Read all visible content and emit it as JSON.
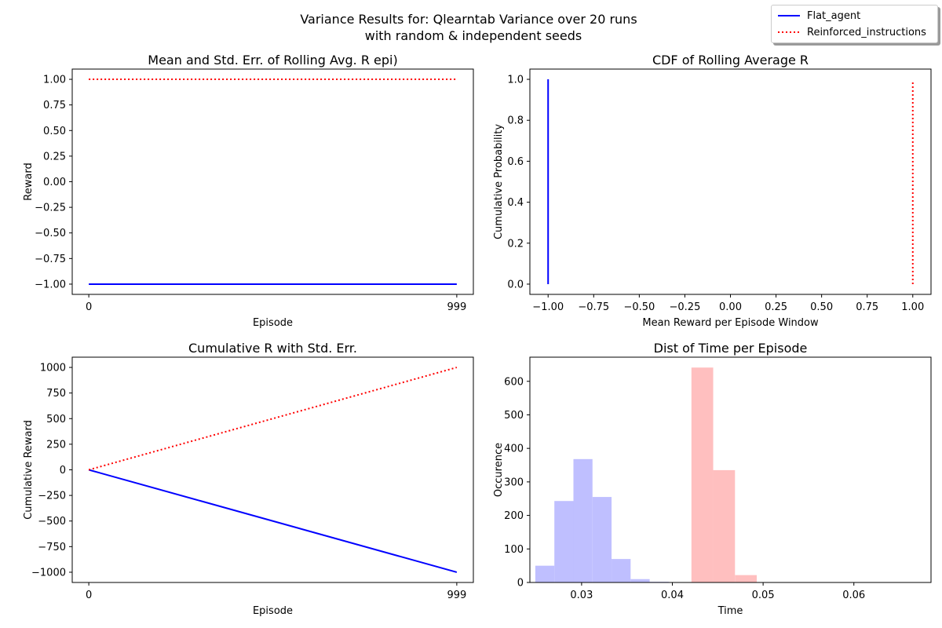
{
  "figure": {
    "title_line1": "Variance Results for: Qlearntab Variance over 20 runs",
    "title_line2": "with random & independent seeds"
  },
  "legend": {
    "placement": "top-right",
    "items": [
      {
        "label": "Flat_agent",
        "color": "#0000ff",
        "style": "solid"
      },
      {
        "label": "Reinforced_instructions",
        "color": "#ff0000",
        "style": "dotted"
      }
    ]
  },
  "chart_data": [
    {
      "type": "line",
      "title": "Mean and Std. Err. of Rolling Avg. R epi)",
      "xlabel": "Episode",
      "ylabel": "Reward",
      "xlim": [
        -45,
        1044
      ],
      "ylim": [
        -1.1,
        1.1
      ],
      "xticks": [
        0,
        999
      ],
      "xtick_labels": [
        "0",
        "999"
      ],
      "yticks": [
        -1.0,
        -0.75,
        -0.5,
        -0.25,
        0.0,
        0.25,
        0.5,
        0.75,
        1.0
      ],
      "ytick_labels": [
        "−1.00",
        "−0.75",
        "−0.50",
        "−0.25",
        "0.00",
        "0.25",
        "0.50",
        "0.75",
        "1.00"
      ],
      "grid": false,
      "series": [
        {
          "name": "Flat_agent",
          "color": "#0000ff",
          "style": "solid",
          "x": [
            0,
            999
          ],
          "y": [
            -1.0,
            -1.0
          ]
        },
        {
          "name": "Reinforced_instructions",
          "color": "#ff0000",
          "style": "dotted",
          "x": [
            0,
            999
          ],
          "y": [
            1.0,
            1.0
          ]
        }
      ]
    },
    {
      "type": "line",
      "title": "CDF of Rolling Average R",
      "xlabel": "Mean Reward per Episode Window",
      "ylabel": "Cumulative Probability",
      "xlim": [
        -1.1,
        1.1
      ],
      "ylim": [
        -0.05,
        1.05
      ],
      "xticks": [
        -1.0,
        -0.75,
        -0.5,
        -0.25,
        0.0,
        0.25,
        0.5,
        0.75,
        1.0
      ],
      "xtick_labels": [
        "−1.00",
        "−0.75",
        "−0.50",
        "−0.25",
        "0.00",
        "0.25",
        "0.50",
        "0.75",
        "1.00"
      ],
      "yticks": [
        0.0,
        0.2,
        0.4,
        0.6,
        0.8,
        1.0
      ],
      "ytick_labels": [
        "0.0",
        "0.2",
        "0.4",
        "0.6",
        "0.8",
        "1.0"
      ],
      "grid": false,
      "series": [
        {
          "name": "Flat_agent",
          "color": "#0000ff",
          "style": "solid",
          "x": [
            -1.0,
            -1.0
          ],
          "y": [
            0.0,
            1.0
          ]
        },
        {
          "name": "Reinforced_instructions",
          "color": "#ff0000",
          "style": "dotted",
          "x": [
            1.0,
            1.0
          ],
          "y": [
            0.0,
            0.985
          ]
        }
      ]
    },
    {
      "type": "line",
      "title": "Cumulative R with Std. Err.",
      "xlabel": "Episode",
      "ylabel": "Cumulative Reward",
      "xlim": [
        -45,
        1044
      ],
      "ylim": [
        -1100,
        1100
      ],
      "xticks": [
        0,
        999
      ],
      "xtick_labels": [
        "0",
        "999"
      ],
      "yticks": [
        -1000,
        -750,
        -500,
        -250,
        0,
        250,
        500,
        750,
        1000
      ],
      "ytick_labels": [
        "−1000",
        "−750",
        "−500",
        "−250",
        "0",
        "250",
        "500",
        "750",
        "1000"
      ],
      "grid": false,
      "series": [
        {
          "name": "Flat_agent",
          "color": "#0000ff",
          "style": "solid",
          "x": [
            0,
            999
          ],
          "y": [
            0,
            -1000
          ]
        },
        {
          "name": "Reinforced_instructions",
          "color": "#ff0000",
          "style": "dotted",
          "x": [
            0,
            999
          ],
          "y": [
            0,
            1000
          ]
        }
      ]
    },
    {
      "type": "bar",
      "title": "Dist of Time per Episode",
      "xlabel": "Time",
      "ylabel": "Occurence",
      "xlim": [
        0.0243,
        0.0685
      ],
      "ylim": [
        0,
        672
      ],
      "xticks": [
        0.03,
        0.04,
        0.05,
        0.06
      ],
      "xtick_labels": [
        "0.03",
        "0.04",
        "0.05",
        "0.06"
      ],
      "yticks": [
        0,
        100,
        200,
        300,
        400,
        500,
        600
      ],
      "ytick_labels": [
        "0",
        "100",
        "200",
        "300",
        "400",
        "500",
        "600"
      ],
      "grid": false,
      "series": [
        {
          "name": "Flat_agent",
          "color": "#bfbfff",
          "bin_width": 0.0021,
          "bins": [
            0.0249,
            0.027,
            0.0291,
            0.0312,
            0.0333,
            0.0354,
            0.0375,
            0.0396,
            0.0417,
            0.0438
          ],
          "values": [
            50,
            243,
            368,
            255,
            70,
            10,
            2,
            1,
            0,
            4
          ]
        },
        {
          "name": "Reinforced_instructions",
          "color": "#ffbfbf",
          "bin_width": 0.0024,
          "bins": [
            0.0421,
            0.0445,
            0.0469,
            0.0493,
            0.0517,
            0.0541,
            0.0565,
            0.0589,
            0.0613,
            0.0637
          ],
          "values": [
            641,
            335,
            22,
            1,
            0,
            0,
            0,
            1,
            0,
            1
          ]
        }
      ]
    }
  ]
}
